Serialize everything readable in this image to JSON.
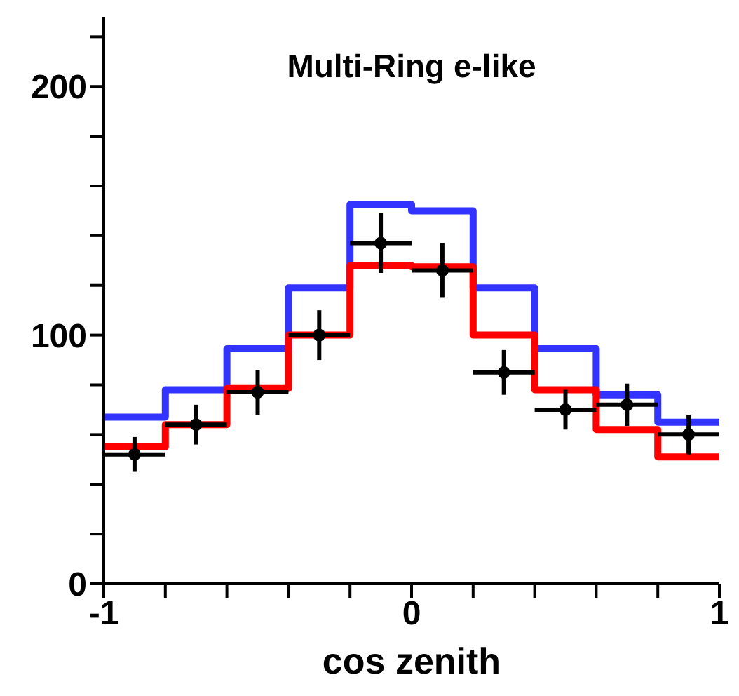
{
  "chart_data": {
    "type": "histogram",
    "title": "Multi-Ring e-like",
    "xlabel": "cos zenith",
    "bins": [
      -1,
      -0.8,
      -0.6,
      -0.4,
      -0.2,
      0,
      0.2,
      0.4,
      0.6,
      0.8,
      1
    ],
    "series": [
      {
        "color": "#3333ff",
        "values": [
          67,
          78,
          94.5,
          119,
          152.5,
          150,
          119,
          94.5,
          76,
          65
        ]
      },
      {
        "color": "#ff0000",
        "values": [
          55,
          64,
          78.5,
          100,
          128,
          127.5,
          100,
          78,
          62,
          51
        ]
      },
      {
        "type": "scatter",
        "color": "#000000",
        "x": [
          -0.9,
          -0.7,
          -0.5,
          -0.3,
          -0.1,
          0.1,
          0.3,
          0.5,
          0.7,
          0.9
        ],
        "values": [
          52,
          64,
          77,
          100,
          137,
          126,
          85,
          70,
          72,
          60
        ],
        "errors": [
          7,
          8,
          9,
          10,
          12,
          11,
          9,
          8,
          8.5,
          8
        ],
        "xerrors": [
          0.1,
          0.1,
          0.1,
          0.1,
          0.1,
          0.1,
          0.1,
          0.1,
          0.1,
          0.1
        ]
      }
    ],
    "xlim": [
      -1,
      1
    ],
    "ylim": [
      0,
      228
    ],
    "xticks": [
      -1,
      {
        "value": -0.8,
        "label": null
      },
      {
        "value": -0.6,
        "label": null
      },
      {
        "value": -0.4,
        "label": null
      },
      {
        "value": -0.2,
        "label": null
      },
      0,
      {
        "value": 0.2,
        "label": null
      },
      {
        "value": 0.4,
        "label": null
      },
      {
        "value": 0.6,
        "label": null
      },
      {
        "value": 0.8,
        "label": null
      },
      1
    ],
    "yticks": [
      0,
      {
        "value": 20,
        "label": null
      },
      {
        "value": 40,
        "label": null
      },
      {
        "value": 60,
        "label": null
      },
      {
        "value": 80,
        "label": null
      },
      100,
      {
        "value": 120,
        "label": null
      },
      {
        "value": 140,
        "label": null
      },
      {
        "value": 160,
        "label": null
      },
      {
        "value": 180,
        "label": null
      },
      200,
      {
        "value": 220,
        "label": null
      }
    ],
    "marker": "circle"
  }
}
